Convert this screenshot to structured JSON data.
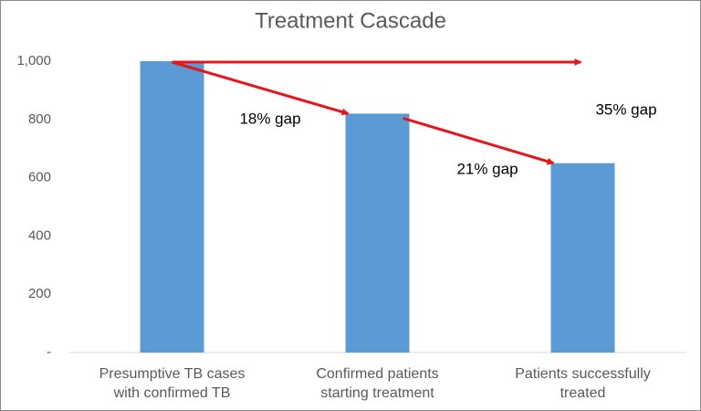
{
  "chart_data": {
    "type": "bar",
    "title": "Treatment Cascade",
    "categories": [
      "Presumptive TB cases with confirmed TB",
      "Confirmed patients starting treatment",
      "Patients successfully treated"
    ],
    "values": [
      1000,
      820,
      650
    ],
    "color": "#5b9bd5",
    "ylim": [
      0,
      1000
    ],
    "yticks": [
      {
        "value": 0,
        "label": "-"
      },
      200,
      400,
      600,
      {
        "value": 800,
        "label": "800"
      },
      {
        "value": 1000,
        "label": "1,000"
      }
    ],
    "grid": false,
    "annotations": [
      "18% gap",
      "21% gap",
      "35% gap"
    ]
  }
}
